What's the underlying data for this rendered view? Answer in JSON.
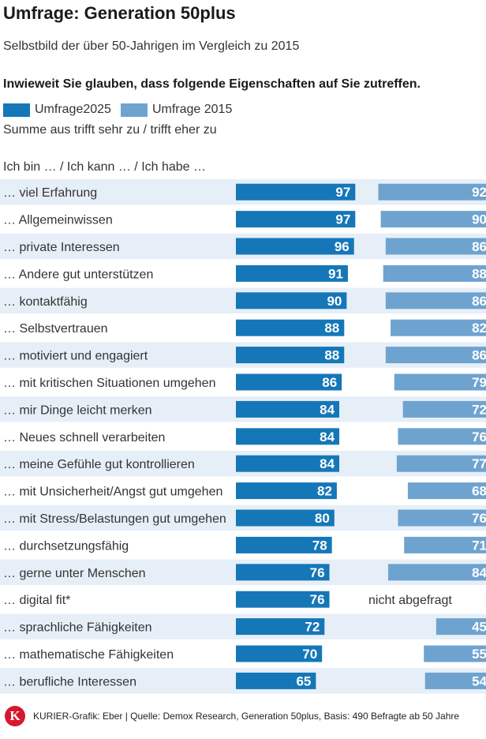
{
  "header": {
    "title": "Umfrage: Generation 50plus",
    "subtitle": "Selbstbild der über 50-Jahrigen im Vergleich zu 2015",
    "question": "Inwieweit Sie glauben, dass folgende Eigenschaften auf Sie zutreffen.",
    "note": "Summe aus trifft sehr zu / trifft eher zu",
    "prefix": "Ich bin … / Ich kann … / Ich habe …"
  },
  "legend": [
    {
      "label": "Umfrage2025",
      "color": "#1577b8"
    },
    {
      "label": "Umfrage 2015",
      "color": "#6fa3cf"
    }
  ],
  "chart_data": {
    "type": "bar",
    "orientation": "horizontal",
    "title": "Umfrage: Generation 50plus",
    "categories": [
      "… viel Erfahrung",
      "… Allgemeinwissen",
      "… private Interessen",
      "… Andere gut unterstützen",
      "… kontaktfähig",
      "… Selbstvertrauen",
      "… motiviert und engagiert",
      "… mit kritischen Situationen umgehen",
      "… mir Dinge leicht merken",
      "… Neues schnell verarbeiten",
      "… meine Gefühle gut kontrollieren",
      "… mit Unsicherheit/Angst gut umgehen",
      "… mit Stress/Belastungen gut umgehen",
      "… durchsetzungsfähig",
      "… gerne unter Menschen",
      "… digital fit*",
      "… sprachliche Fähigkeiten",
      "… mathematische Fähigkeiten",
      "… berufliche Interessen"
    ],
    "series": [
      {
        "name": "Umfrage2025",
        "color": "#1577b8",
        "values": [
          97,
          97,
          96,
          91,
          90,
          88,
          88,
          86,
          84,
          84,
          84,
          82,
          80,
          78,
          76,
          76,
          72,
          70,
          65
        ]
      },
      {
        "name": "Umfrage 2015",
        "color": "#6fa3cf",
        "values": [
          92,
          90,
          86,
          88,
          86,
          82,
          86,
          79,
          72,
          76,
          77,
          68,
          76,
          71,
          84,
          null,
          45,
          55,
          54
        ]
      }
    ],
    "missing_label": "nicht abgefragt",
    "xlim": [
      0,
      100
    ],
    "xlabel": "",
    "ylabel": "",
    "stripe_color": "#e6eff8"
  },
  "footer": {
    "logo_letter": "K",
    "source": "KURIER-Grafik: Eber | Quelle: Demox Research, Generation 50plus, Basis: 490 Befragte ab 50 Jahre"
  }
}
